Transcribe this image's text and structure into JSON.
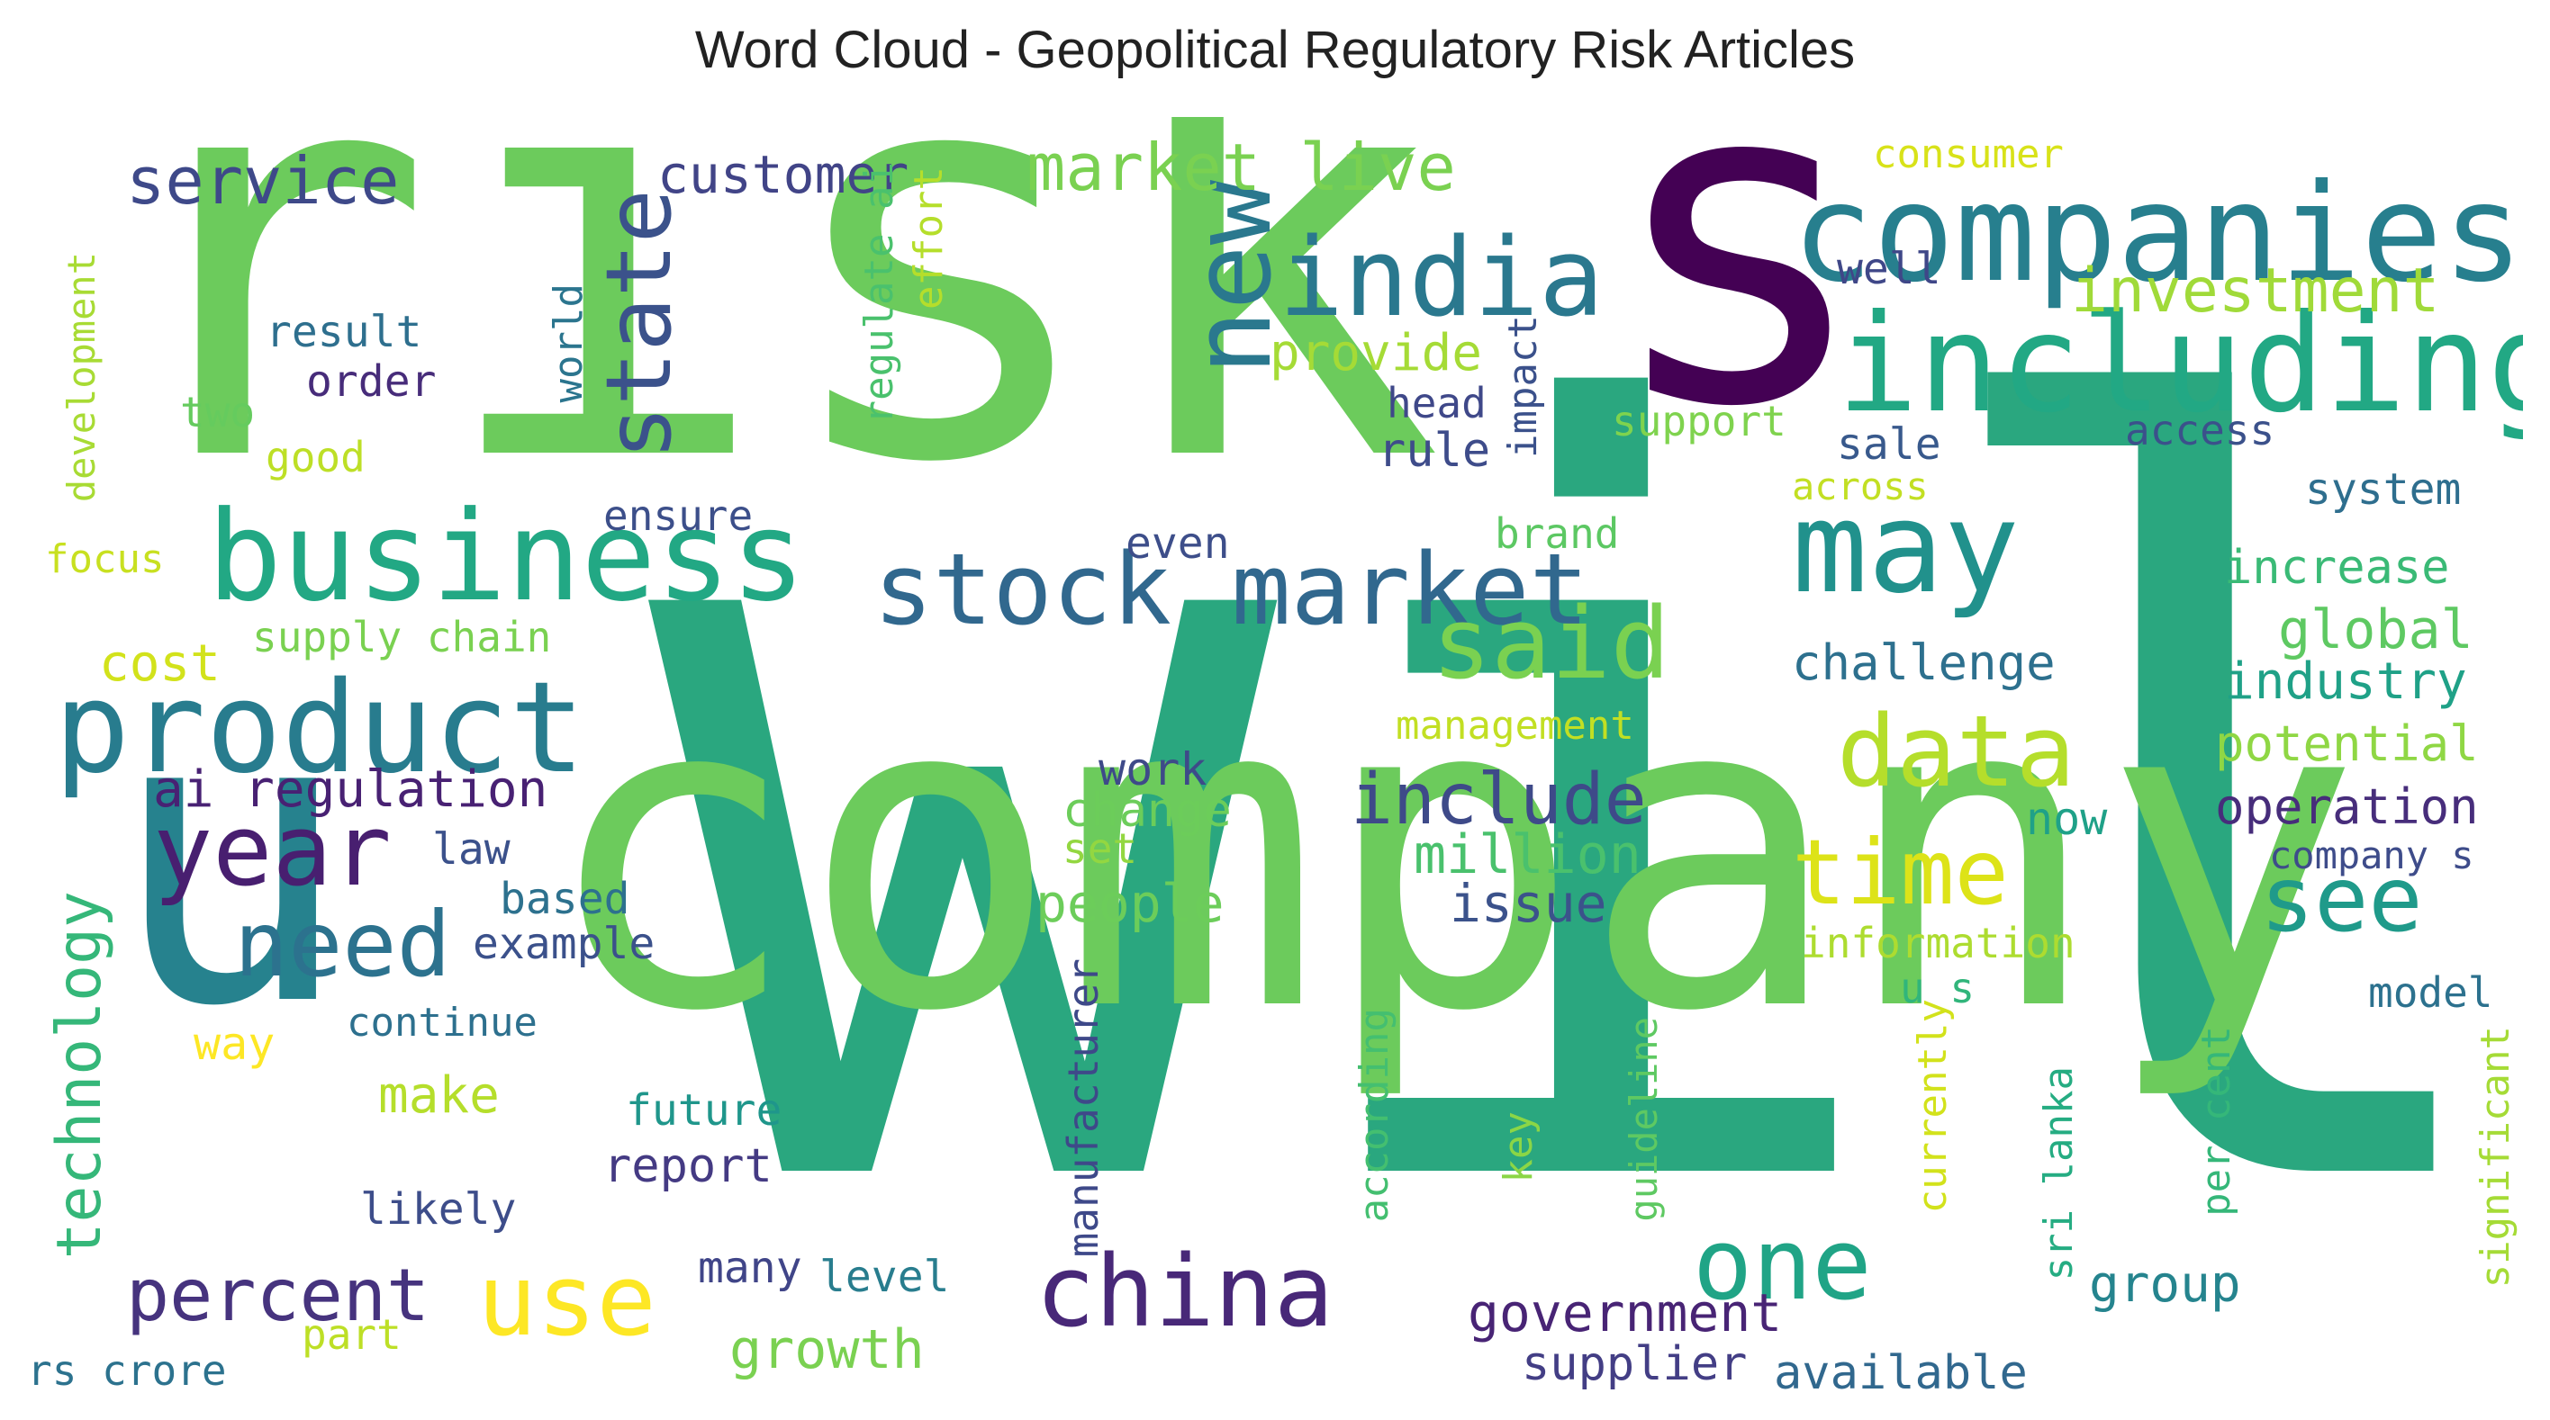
{
  "title": "Word Cloud - Geopolitical Regulatory Risk Articles",
  "palette": "viridis",
  "words": [
    {
      "text": "will",
      "color": "#2aa77f",
      "vertical": false
    },
    {
      "text": "company",
      "color": "#6ccb5c",
      "vertical": false
    },
    {
      "text": "risk",
      "color": "#6ccb5c",
      "vertical": false
    },
    {
      "text": "s",
      "color": "#440154",
      "vertical": false
    },
    {
      "text": "u",
      "color": "#26828e",
      "vertical": false
    },
    {
      "text": "companies",
      "color": "#277f8e",
      "vertical": false
    },
    {
      "text": "including",
      "color": "#22a884",
      "vertical": false
    },
    {
      "text": "business",
      "color": "#22a884",
      "vertical": false
    },
    {
      "text": "stock market",
      "color": "#31688e",
      "vertical": false
    },
    {
      "text": "product",
      "color": "#287c8e",
      "vertical": false
    },
    {
      "text": "india",
      "color": "#2a788e",
      "vertical": false
    },
    {
      "text": "new",
      "color": "#2a788e",
      "vertical": true
    },
    {
      "text": "may",
      "color": "#21918c",
      "vertical": false
    },
    {
      "text": "data",
      "color": "#b5de2b",
      "vertical": false
    },
    {
      "text": "said",
      "color": "#7ad151",
      "vertical": false
    },
    {
      "text": "year",
      "color": "#481f70",
      "vertical": false
    },
    {
      "text": "china",
      "color": "#482878",
      "vertical": false
    },
    {
      "text": "use",
      "color": "#fde725",
      "vertical": false
    },
    {
      "text": "one",
      "color": "#20a486",
      "vertical": false
    },
    {
      "text": "time",
      "color": "#dde318",
      "vertical": false
    },
    {
      "text": "see",
      "color": "#1f9a8a",
      "vertical": false
    },
    {
      "text": "need",
      "color": "#2c728e",
      "vertical": false
    },
    {
      "text": "state",
      "color": "#3b528b",
      "vertical": true
    },
    {
      "text": "market live",
      "color": "#7ad151",
      "vertical": false
    },
    {
      "text": "include",
      "color": "#3e4a89",
      "vertical": false
    },
    {
      "text": "investment",
      "color": "#a0da39",
      "vertical": false
    },
    {
      "text": "percent",
      "color": "#46337e",
      "vertical": false
    },
    {
      "text": "technology",
      "color": "#35b779",
      "vertical": true
    },
    {
      "text": "service",
      "color": "#3e4989",
      "vertical": false
    },
    {
      "text": "customer",
      "color": "#414487",
      "vertical": false
    },
    {
      "text": "growth",
      "color": "#7ad151",
      "vertical": false
    },
    {
      "text": "government",
      "color": "#482475",
      "vertical": false
    },
    {
      "text": "ai regulation",
      "color": "#482173",
      "vertical": false
    },
    {
      "text": "million",
      "color": "#4ac16d",
      "vertical": false
    },
    {
      "text": "challenge",
      "color": "#2d708e",
      "vertical": false
    },
    {
      "text": "global",
      "color": "#5ec962",
      "vertical": false
    },
    {
      "text": "industry",
      "color": "#1fa187",
      "vertical": false
    },
    {
      "text": "operation",
      "color": "#472d7b",
      "vertical": false
    },
    {
      "text": "potential",
      "color": "#8fd744",
      "vertical": false
    },
    {
      "text": "group",
      "color": "#25848e",
      "vertical": false
    },
    {
      "text": "supplier",
      "color": "#433e85",
      "vertical": false
    },
    {
      "text": "available",
      "color": "#31688e",
      "vertical": false
    },
    {
      "text": "people",
      "color": "#6ccd5a",
      "vertical": false
    },
    {
      "text": "issue",
      "color": "#3b528b",
      "vertical": false
    },
    {
      "text": "cost",
      "color": "#d2e21b",
      "vertical": false
    },
    {
      "text": "development",
      "color": "#a8db34",
      "vertical": true
    },
    {
      "text": "consumer",
      "color": "#d8e219",
      "vertical": false
    },
    {
      "text": "well",
      "color": "#3f4788",
      "vertical": false
    },
    {
      "text": "provide",
      "color": "#a5db36",
      "vertical": false
    },
    {
      "text": "result",
      "color": "#2e6f8e",
      "vertical": false
    },
    {
      "text": "order",
      "color": "#472c7a",
      "vertical": false
    },
    {
      "text": "two",
      "color": "#65cb5e",
      "vertical": false
    },
    {
      "text": "good",
      "color": "#bddf26",
      "vertical": false
    },
    {
      "text": "world",
      "color": "#2b758e",
      "vertical": true
    },
    {
      "text": "regulate ai",
      "color": "#4ac16d",
      "vertical": true
    },
    {
      "text": "effort",
      "color": "#b5de2b",
      "vertical": true
    },
    {
      "text": "impact",
      "color": "#3b518b",
      "vertical": true
    },
    {
      "text": "head",
      "color": "#3f4889",
      "vertical": false
    },
    {
      "text": "rule",
      "color": "#3e4c8a",
      "vertical": false
    },
    {
      "text": "sale",
      "color": "#38598c",
      "vertical": false
    },
    {
      "text": "support",
      "color": "#7fd34e",
      "vertical": false
    },
    {
      "text": "access",
      "color": "#3b518b",
      "vertical": false
    },
    {
      "text": "across",
      "color": "#c2df23",
      "vertical": false
    },
    {
      "text": "system",
      "color": "#2e6e8e",
      "vertical": false
    },
    {
      "text": "brand",
      "color": "#5cc863",
      "vertical": false
    },
    {
      "text": "ensure",
      "color": "#3c4f8a",
      "vertical": false
    },
    {
      "text": "even",
      "color": "#3d4e8a",
      "vertical": false
    },
    {
      "text": "focus",
      "color": "#c8e020",
      "vertical": false
    },
    {
      "text": "increase",
      "color": "#3aba76",
      "vertical": false
    },
    {
      "text": "supply chain",
      "color": "#7ad151",
      "vertical": false
    },
    {
      "text": "management",
      "color": "#c2df23",
      "vertical": false
    },
    {
      "text": "work",
      "color": "#3e4a89",
      "vertical": false
    },
    {
      "text": "change",
      "color": "#6ccd5a",
      "vertical": false
    },
    {
      "text": "set",
      "color": "#93d741",
      "vertical": false
    },
    {
      "text": "now",
      "color": "#1fa188",
      "vertical": false
    },
    {
      "text": "company s",
      "color": "#3e4c8a",
      "vertical": false
    },
    {
      "text": "law",
      "color": "#3b518b",
      "vertical": false
    },
    {
      "text": "based",
      "color": "#2d718e",
      "vertical": false
    },
    {
      "text": "example",
      "color": "#3b518b",
      "vertical": false
    },
    {
      "text": "information",
      "color": "#addc30",
      "vertical": false
    },
    {
      "text": "u s",
      "color": "#31b57b",
      "vertical": false
    },
    {
      "text": "model",
      "color": "#2c718e",
      "vertical": false
    },
    {
      "text": "continue",
      "color": "#2d708e",
      "vertical": false
    },
    {
      "text": "way",
      "color": "#fde725",
      "vertical": false
    },
    {
      "text": "make",
      "color": "#b5de2b",
      "vertical": false
    },
    {
      "text": "future",
      "color": "#1f968b",
      "vertical": false
    },
    {
      "text": "report",
      "color": "#443a83",
      "vertical": false
    },
    {
      "text": "likely",
      "color": "#3d4d8a",
      "vertical": false
    },
    {
      "text": "manufacturer",
      "color": "#3e4989",
      "vertical": true
    },
    {
      "text": "according",
      "color": "#44bf70",
      "vertical": true
    },
    {
      "text": "key",
      "color": "#8bd646",
      "vertical": true
    },
    {
      "text": "guideline",
      "color": "#5ec962",
      "vertical": true
    },
    {
      "text": "currently",
      "color": "#d2e21b",
      "vertical": true
    },
    {
      "text": "sri lanka",
      "color": "#25ac82",
      "vertical": true
    },
    {
      "text": "per cent",
      "color": "#35b779",
      "vertical": true
    },
    {
      "text": "significant",
      "color": "#a5db36",
      "vertical": true
    },
    {
      "text": "many",
      "color": "#404588",
      "vertical": false
    },
    {
      "text": "level",
      "color": "#287d8e",
      "vertical": false
    },
    {
      "text": "part",
      "color": "#bddf26",
      "vertical": false
    },
    {
      "text": "rs crore",
      "color": "#2c728e",
      "vertical": false
    }
  ]
}
